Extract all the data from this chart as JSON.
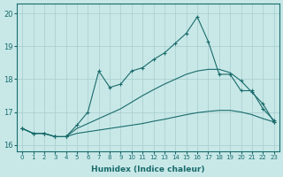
{
  "xlabel": "Humidex (Indice chaleur)",
  "bg_color": "#c8e8e8",
  "line_color": "#1a6b6b",
  "grid_color": "#a8cccc",
  "xlim": [
    -0.5,
    23.5
  ],
  "ylim": [
    15.8,
    20.3
  ],
  "yticks": [
    16,
    17,
    18,
    19,
    20
  ],
  "xticks": [
    0,
    1,
    2,
    3,
    4,
    5,
    6,
    7,
    8,
    9,
    10,
    11,
    12,
    13,
    14,
    15,
    16,
    17,
    18,
    19,
    20,
    21,
    22,
    23
  ],
  "line1_x": [
    0,
    1,
    2,
    3,
    4,
    5,
    6,
    7,
    8,
    9,
    10,
    11,
    12,
    13,
    14,
    15,
    16,
    17,
    18,
    19,
    20,
    21,
    22,
    23
  ],
  "line1_y": [
    16.5,
    16.35,
    16.35,
    16.25,
    16.25,
    16.35,
    16.4,
    16.45,
    16.5,
    16.55,
    16.6,
    16.65,
    16.72,
    16.78,
    16.85,
    16.92,
    16.98,
    17.02,
    17.05,
    17.05,
    17.0,
    16.92,
    16.8,
    16.7
  ],
  "line2_x": [
    0,
    1,
    2,
    3,
    4,
    5,
    6,
    7,
    8,
    9,
    10,
    11,
    12,
    13,
    14,
    15,
    16,
    17,
    18,
    19,
    20,
    21,
    22,
    23
  ],
  "line2_y": [
    16.5,
    16.35,
    16.35,
    16.25,
    16.25,
    16.5,
    16.65,
    16.8,
    16.95,
    17.1,
    17.3,
    17.5,
    17.68,
    17.85,
    18.0,
    18.15,
    18.25,
    18.3,
    18.3,
    18.2,
    17.95,
    17.6,
    17.25,
    16.7
  ],
  "line3_x": [
    0,
    1,
    2,
    3,
    4,
    5,
    6,
    7,
    8,
    9,
    10,
    11,
    12,
    13,
    14,
    15,
    16,
    17,
    18,
    19,
    20,
    21,
    22,
    23
  ],
  "line3_y": [
    16.5,
    16.35,
    16.35,
    16.25,
    16.25,
    16.6,
    17.0,
    18.25,
    17.75,
    17.85,
    18.25,
    18.35,
    18.6,
    18.8,
    19.1,
    19.4,
    19.9,
    19.15,
    18.15,
    18.15,
    17.65,
    17.65,
    17.1,
    16.75
  ],
  "line1_markers": [
    0,
    1,
    2,
    3,
    4,
    23
  ],
  "line2_markers": [
    0,
    1,
    2,
    3,
    4,
    20,
    21,
    22,
    23
  ],
  "line3_markers": [
    0,
    1,
    2,
    3,
    4,
    5,
    6,
    7,
    8,
    9,
    10,
    11,
    12,
    13,
    14,
    15,
    16,
    17,
    18,
    19,
    20,
    21,
    22,
    23
  ]
}
